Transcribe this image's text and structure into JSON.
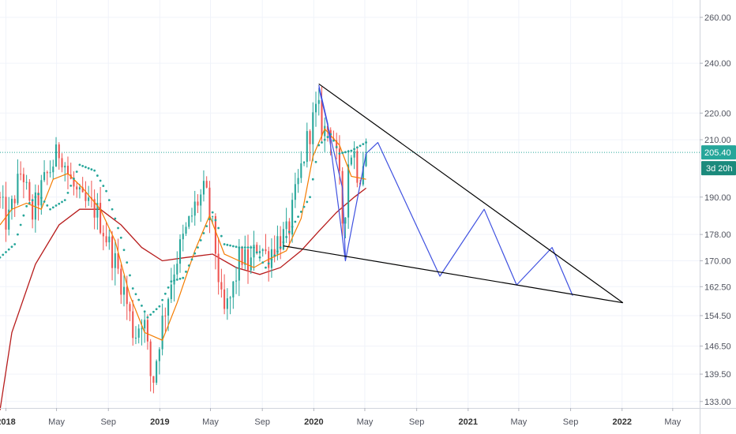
{
  "chart_data": {
    "type": "candlestick",
    "y_scale": "log",
    "ylim": [
      131.5,
      268
    ],
    "y_ticks": [
      "260.00",
      "240.00",
      "220.00",
      "210.00",
      "190.00",
      "178.00",
      "170.00",
      "162.50",
      "154.50",
      "146.50",
      "139.50",
      "133.00"
    ],
    "y_tick_values": [
      260,
      240,
      220,
      210,
      190,
      178,
      170,
      162.5,
      154.5,
      146.5,
      139.5,
      133
    ],
    "x_range": [
      "2017-12-18",
      "2022-07-04"
    ],
    "x_ticks": [
      {
        "label": "2018",
        "date": "2018-01-01",
        "year": true
      },
      {
        "label": "May",
        "date": "2018-05-01",
        "year": false
      },
      {
        "label": "Sep",
        "date": "2018-09-01",
        "year": false
      },
      {
        "label": "2019",
        "date": "2019-01-01",
        "year": true
      },
      {
        "label": "May",
        "date": "2019-05-01",
        "year": false
      },
      {
        "label": "Sep",
        "date": "2019-09-01",
        "year": false
      },
      {
        "label": "2020",
        "date": "2020-01-01",
        "year": true
      },
      {
        "label": "May",
        "date": "2020-05-01",
        "year": false
      },
      {
        "label": "Sep",
        "date": "2020-09-01",
        "year": false
      },
      {
        "label": "2021",
        "date": "2021-01-01",
        "year": true
      },
      {
        "label": "May",
        "date": "2021-05-01",
        "year": false
      },
      {
        "label": "Sep",
        "date": "2021-09-01",
        "year": false
      },
      {
        "label": "2022",
        "date": "2022-01-01",
        "year": true
      },
      {
        "label": "May",
        "date": "2022-05-01",
        "year": false
      }
    ],
    "last_price": 205.4,
    "last_price_label": "205.40",
    "countdown_label": "3d 20h",
    "grid": true,
    "colors": {
      "up": "#26a69a",
      "down": "#ef5350",
      "ma_fast": "#f57c00",
      "ma_slow": "#b71c1c",
      "sar": "#26a69a",
      "projection": "#3f51e0",
      "triangle": "#000000",
      "badge_price": "#26a69a",
      "badge_time": "#1b8a7c",
      "grid": "#f0f3fa"
    },
    "pivots": [
      [
        "2017-12-18",
        190
      ],
      [
        "2018-01-08",
        181
      ],
      [
        "2018-02-12",
        200
      ],
      [
        "2018-03-05",
        183
      ],
      [
        "2018-04-02",
        194
      ],
      [
        "2018-05-14",
        207
      ],
      [
        "2018-06-04",
        196
      ],
      [
        "2018-07-02",
        188
      ],
      [
        "2018-08-06",
        186
      ],
      [
        "2018-09-03",
        176
      ],
      [
        "2018-10-08",
        163
      ],
      [
        "2018-11-05",
        149
      ],
      [
        "2018-11-26",
        155
      ],
      [
        "2018-12-17",
        136
      ],
      [
        "2019-01-07",
        151
      ],
      [
        "2019-02-11",
        170
      ],
      [
        "2019-03-11",
        180
      ],
      [
        "2019-04-01",
        188
      ],
      [
        "2019-04-22",
        192
      ],
      [
        "2019-05-13",
        177
      ],
      [
        "2019-06-03",
        154
      ],
      [
        "2019-06-24",
        160
      ],
      [
        "2019-07-15",
        172
      ],
      [
        "2019-08-05",
        168
      ],
      [
        "2019-08-26",
        176
      ],
      [
        "2019-09-16",
        171
      ],
      [
        "2019-10-07",
        176
      ],
      [
        "2019-11-04",
        178
      ],
      [
        "2019-12-02",
        197
      ],
      [
        "2019-12-23",
        212
      ],
      [
        "2020-01-13",
        222
      ],
      [
        "2020-01-27",
        213
      ],
      [
        "2020-02-17",
        215
      ],
      [
        "2020-03-09",
        190
      ],
      [
        "2020-03-16",
        175
      ],
      [
        "2020-03-23",
        200
      ],
      [
        "2020-04-06",
        208
      ],
      [
        "2020-04-20",
        196
      ],
      [
        "2020-05-04",
        205
      ]
    ],
    "ma_slow_points": [
      [
        "2017-12-18",
        131
      ],
      [
        "2018-01-15",
        150
      ],
      [
        "2018-03-12",
        169
      ],
      [
        "2018-05-07",
        181
      ],
      [
        "2018-06-25",
        186
      ],
      [
        "2018-08-13",
        186
      ],
      [
        "2018-10-01",
        181
      ],
      [
        "2018-11-19",
        174
      ],
      [
        "2019-01-07",
        170
      ],
      [
        "2019-03-04",
        171
      ],
      [
        "2019-05-06",
        172
      ],
      [
        "2019-07-01",
        168
      ],
      [
        "2019-08-26",
        166
      ],
      [
        "2019-10-14",
        168
      ],
      [
        "2019-12-02",
        173
      ],
      [
        "2020-01-13",
        179
      ],
      [
        "2020-02-24",
        185
      ],
      [
        "2020-04-06",
        190
      ],
      [
        "2020-05-04",
        193
      ]
    ],
    "ma_fast_points": [
      [
        "2017-12-18",
        181
      ],
      [
        "2018-01-15",
        186
      ],
      [
        "2018-02-19",
        188
      ],
      [
        "2018-03-26",
        186
      ],
      [
        "2018-04-23",
        196
      ],
      [
        "2018-05-28",
        198
      ],
      [
        "2018-07-02",
        193
      ],
      [
        "2018-08-13",
        186
      ],
      [
        "2018-09-17",
        176
      ],
      [
        "2018-10-22",
        160
      ],
      [
        "2018-11-26",
        150
      ],
      [
        "2019-01-07",
        148
      ],
      [
        "2019-02-11",
        158
      ],
      [
        "2019-03-25",
        173
      ],
      [
        "2019-04-29",
        184
      ],
      [
        "2019-06-03",
        172
      ],
      [
        "2019-07-08",
        170
      ],
      [
        "2019-08-12",
        168
      ],
      [
        "2019-09-09",
        170
      ],
      [
        "2019-10-28",
        173
      ],
      [
        "2019-12-02",
        183
      ],
      [
        "2019-12-30",
        204
      ],
      [
        "2020-01-27",
        214
      ],
      [
        "2020-03-02",
        208
      ],
      [
        "2020-03-30",
        197
      ],
      [
        "2020-05-04",
        196
      ]
    ],
    "sar_points": [
      [
        "2017-12-18",
        171
      ],
      [
        "2018-01-22",
        175
      ],
      [
        "2018-02-19",
        187
      ],
      [
        "2018-03-19",
        191
      ],
      [
        "2018-04-16",
        186
      ],
      [
        "2018-05-21",
        189
      ],
      [
        "2018-06-25",
        201
      ],
      [
        "2018-07-30",
        199
      ],
      [
        "2018-08-27",
        192
      ],
      [
        "2018-10-01",
        177
      ],
      [
        "2018-10-29",
        162
      ],
      [
        "2018-12-03",
        154
      ],
      [
        "2018-12-31",
        157
      ],
      [
        "2019-01-28",
        164
      ],
      [
        "2019-02-25",
        165
      ],
      [
        "2019-04-01",
        174
      ],
      [
        "2019-05-06",
        185
      ],
      [
        "2019-06-03",
        175
      ],
      [
        "2019-07-08",
        174
      ],
      [
        "2019-08-12",
        174
      ],
      [
        "2019-09-09",
        168
      ],
      [
        "2019-10-14",
        174
      ],
      [
        "2019-11-18",
        182
      ],
      [
        "2019-12-23",
        190
      ],
      [
        "2020-01-13",
        208
      ],
      [
        "2020-02-10",
        212
      ],
      [
        "2020-03-02",
        205
      ],
      [
        "2020-03-30",
        206
      ],
      [
        "2020-05-04",
        209
      ]
    ],
    "projection_zigzag": [
      [
        "2020-01-13",
        231
      ],
      [
        "2020-02-03",
        216
      ],
      [
        "2020-03-16",
        170
      ],
      [
        "2020-05-04",
        205
      ],
      [
        "2020-06-01",
        209
      ],
      [
        "2020-10-26",
        165.5
      ],
      [
        "2021-02-08",
        186
      ],
      [
        "2021-04-26",
        163
      ],
      [
        "2021-07-19",
        174
      ],
      [
        "2021-09-06",
        160
      ]
    ],
    "projection_from_top": [
      [
        "2020-01-13",
        230
      ],
      [
        "2020-03-09",
        193
      ],
      [
        "2020-03-16",
        171
      ]
    ],
    "triangle_upper": [
      [
        "2020-01-13",
        231.5
      ],
      [
        "2022-01-03",
        158
      ]
    ],
    "triangle_lower": [
      [
        "2019-10-21",
        174.5
      ],
      [
        "2022-01-03",
        158
      ]
    ]
  }
}
